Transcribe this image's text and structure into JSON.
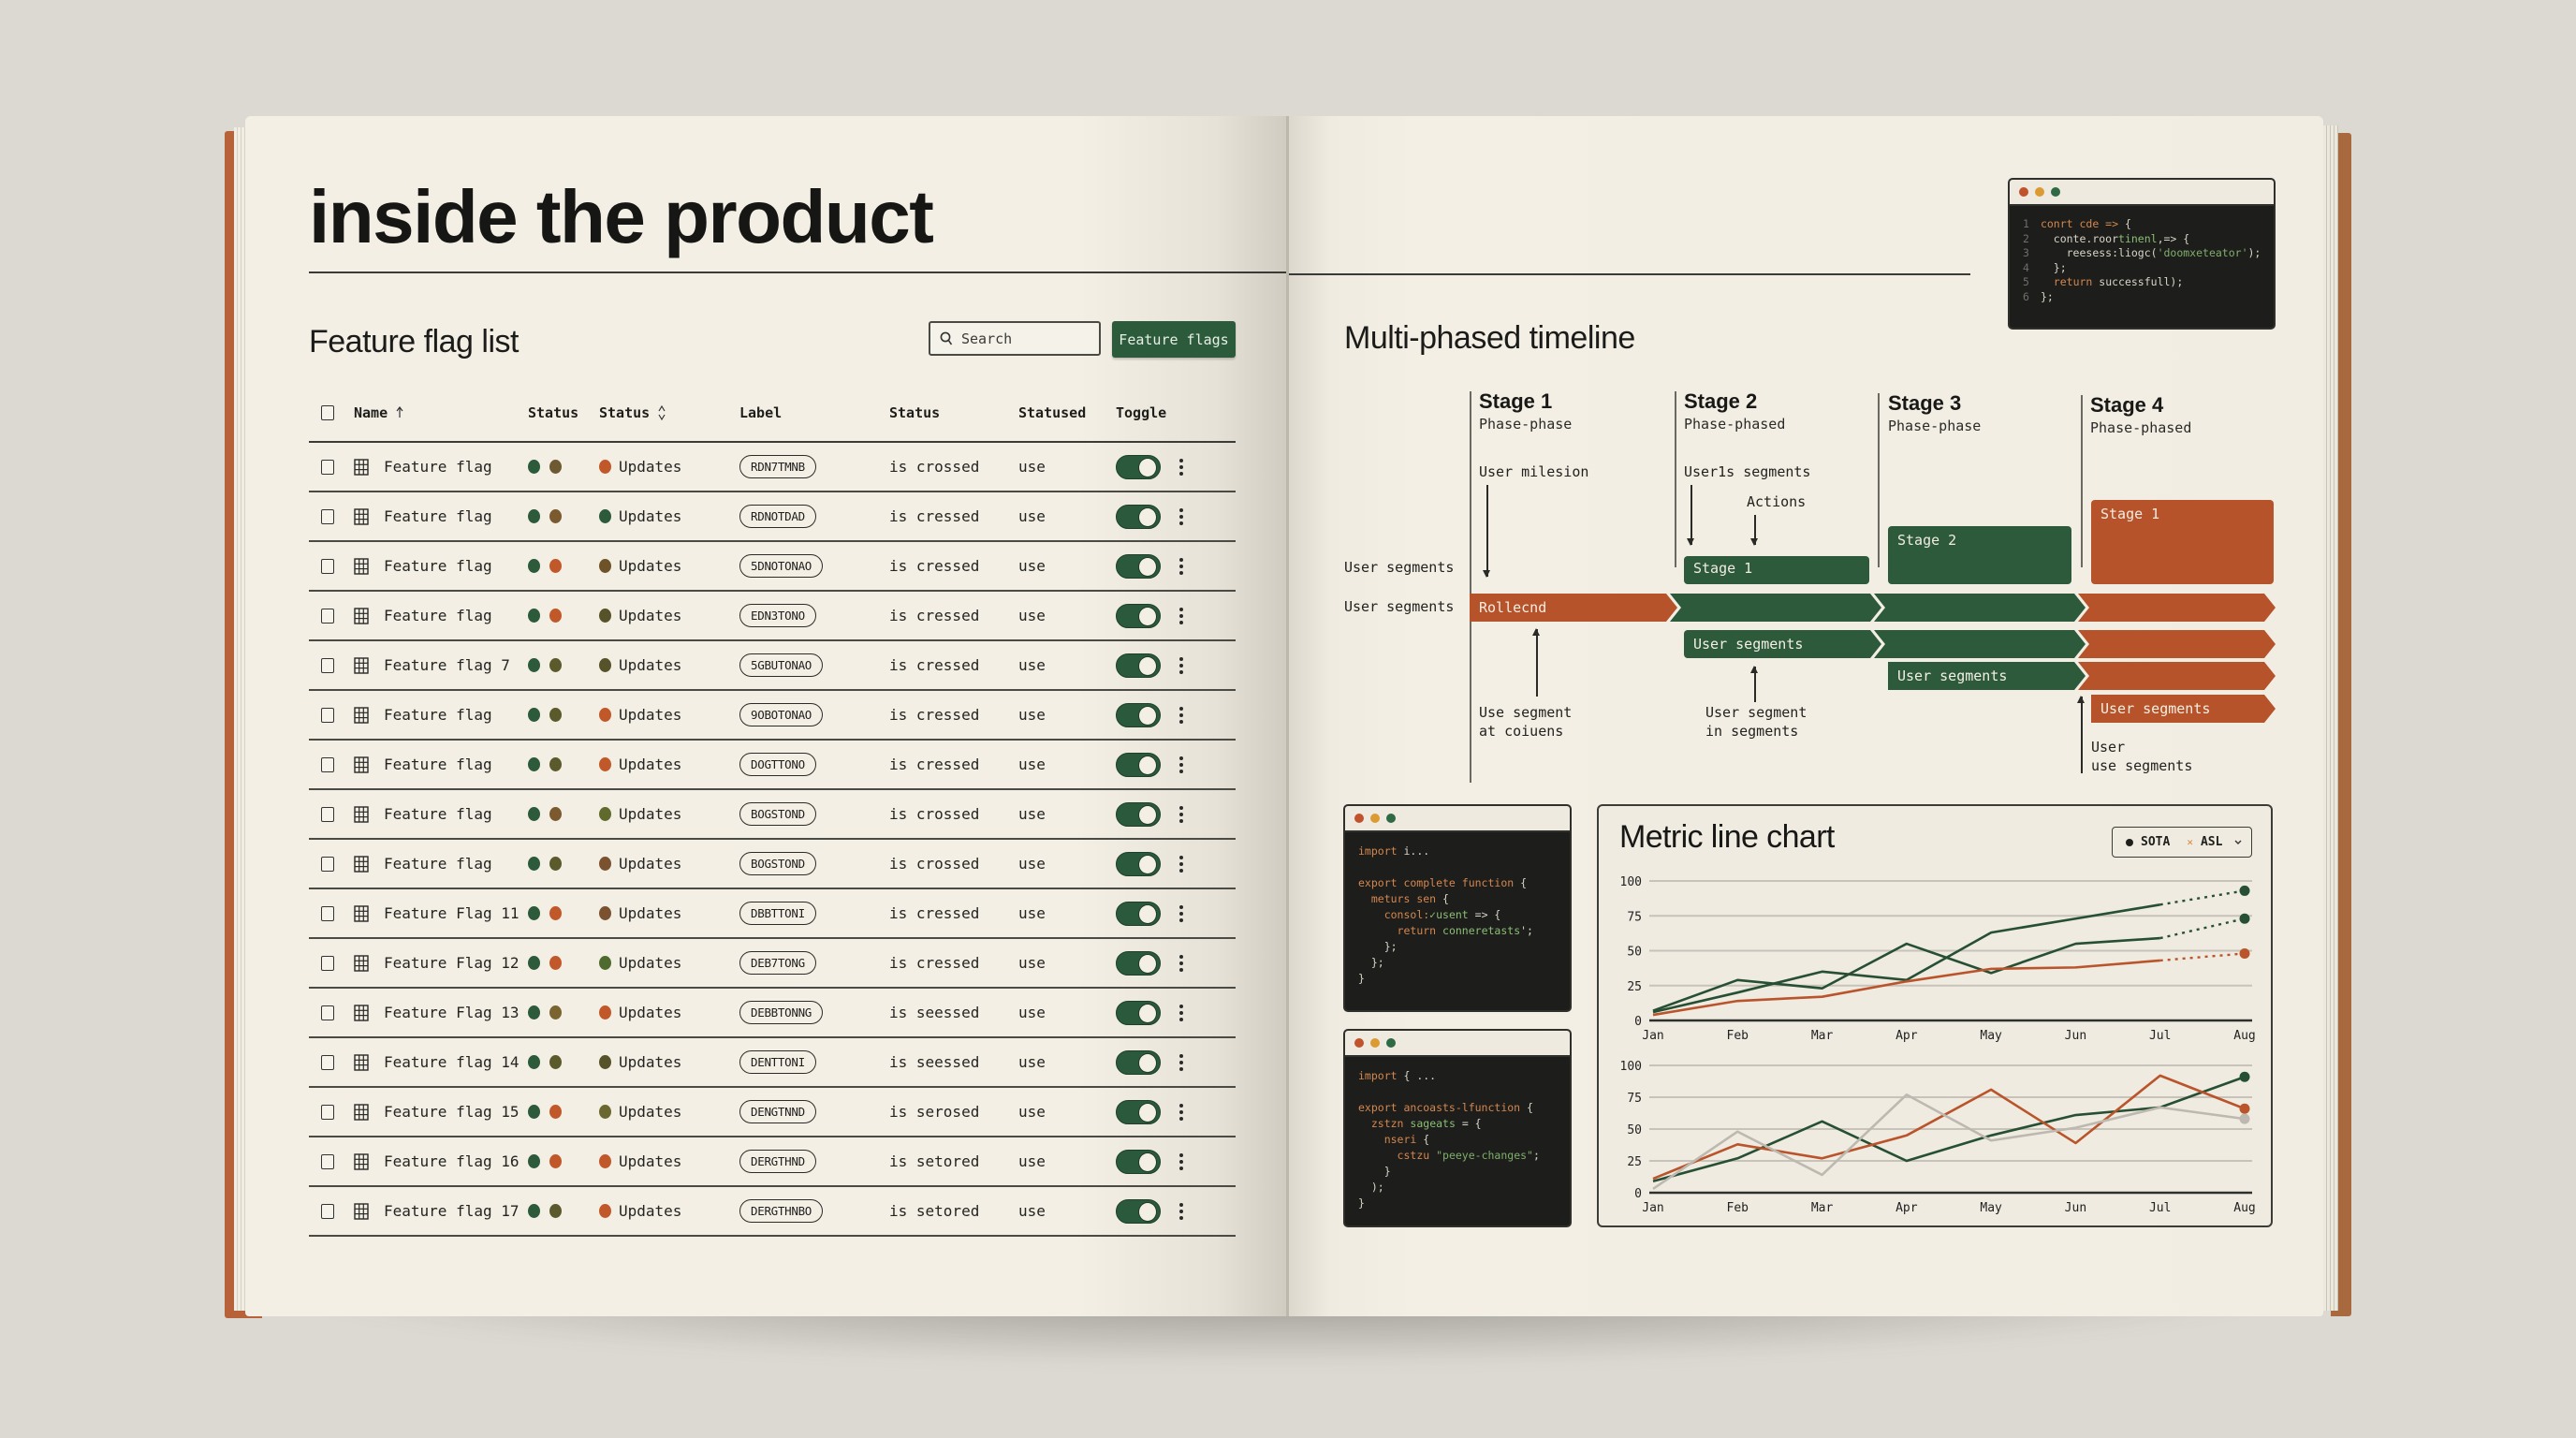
{
  "left_page": {
    "title": "inside the product",
    "section_title": "Feature flag list",
    "search": {
      "placeholder": "Search",
      "icon": "search-icon"
    },
    "primary_button": "Feature flags",
    "table": {
      "columns": [
        "Name",
        "Status",
        "Status",
        "Label",
        "Status",
        "Statused",
        "Toggle"
      ],
      "sort_indicators": {
        "Name": "sort-ascending-icon",
        "Status_2": "sort-both-icon"
      },
      "rows": [
        {
          "name": "Feature flag",
          "dots": [
            "#2c5a3b",
            "#6d5a32"
          ],
          "status_dot": "#c1582a",
          "status": "Updates",
          "label": "RDN7TMNB",
          "state": "is crossed",
          "statused": "use",
          "toggle": true
        },
        {
          "name": "Feature flag",
          "dots": [
            "#2c5a3b",
            "#7a5a2e"
          ],
          "status_dot": "#2c5a3b",
          "status": "Updates",
          "label": "RDNOTDAD",
          "state": "is cressed",
          "statused": "use",
          "toggle": true
        },
        {
          "name": "Feature flag",
          "dots": [
            "#2c5a3b",
            "#c1582a"
          ],
          "status_dot": "#6d5327",
          "status": "Updates",
          "label": "5DNOTONAO",
          "state": "is cressed",
          "statused": "use",
          "toggle": true
        },
        {
          "name": "Feature flag",
          "dots": [
            "#2c5a3b",
            "#c1582a"
          ],
          "status_dot": "#565229",
          "status": "Updates",
          "label": "EDN3TONO",
          "state": "is cressed",
          "statused": "use",
          "toggle": true
        },
        {
          "name": "Feature flag 7",
          "dots": [
            "#2c5a3b",
            "#5a5a2c"
          ],
          "status_dot": "#565229",
          "status": "Updates",
          "label": "5GBUTONAO",
          "state": "is cressed",
          "statused": "use",
          "toggle": true
        },
        {
          "name": "Feature flag",
          "dots": [
            "#2c5a3b",
            "#5a5a2c"
          ],
          "status_dot": "#c1582a",
          "status": "Updates",
          "label": "9OBOTONAO",
          "state": "is cressed",
          "statused": "use",
          "toggle": true
        },
        {
          "name": "Feature flag",
          "dots": [
            "#2c5a3b",
            "#5a5a2c"
          ],
          "status_dot": "#c1582a",
          "status": "Updates",
          "label": "DOGTTONO",
          "state": "is cressed",
          "statused": "use",
          "toggle": true
        },
        {
          "name": "Feature flag",
          "dots": [
            "#2c5a3b",
            "#7a5a2e"
          ],
          "status_dot": "#5f6a2c",
          "status": "Updates",
          "label": "BOGSTOND",
          "state": "is crossed",
          "statused": "use",
          "toggle": true
        },
        {
          "name": "Feature flag",
          "dots": [
            "#2c5a3b",
            "#5a5a2c"
          ],
          "status_dot": "#7a5230",
          "status": "Updates",
          "label": "BOGSTOND",
          "state": "is crossed",
          "statused": "use",
          "toggle": true
        },
        {
          "name": "Feature Flag 11",
          "dots": [
            "#2c5a3b",
            "#c1582a"
          ],
          "status_dot": "#7a5230",
          "status": "Updates",
          "label": "DBBTTONI",
          "state": "is cressed",
          "statused": "use",
          "toggle": true
        },
        {
          "name": "Feature Flag 12",
          "dots": [
            "#2c5a3b",
            "#c1582a"
          ],
          "status_dot": "#4f6a2e",
          "status": "Updates",
          "label": "DEB7TONG",
          "state": "is cressed",
          "statused": "use",
          "toggle": true
        },
        {
          "name": "Feature Flag 13",
          "dots": [
            "#2c5a3b",
            "#7a6430"
          ],
          "status_dot": "#c1582a",
          "status": "Updates",
          "label": "DEBBTONNG",
          "state": "is seessed",
          "statused": "use",
          "toggle": true
        },
        {
          "name": "Feature flag 14",
          "dots": [
            "#2c5a3b",
            "#5a5a2c"
          ],
          "status_dot": "#565229",
          "status": "Updates",
          "label": "DENTTONI",
          "state": "is seessed",
          "statused": "use",
          "toggle": true
        },
        {
          "name": "Feature flag 15",
          "dots": [
            "#2c5a3b",
            "#c1582a"
          ],
          "status_dot": "#6a6830",
          "status": "Updates",
          "label": "DENGTNND",
          "state": "is serosed",
          "statused": "use",
          "toggle": true
        },
        {
          "name": "Feature flag 16",
          "dots": [
            "#2c5a3b",
            "#c1582a"
          ],
          "status_dot": "#c1582a",
          "status": "Updates",
          "label": "DERGTHND",
          "state": "is setored",
          "statused": "use",
          "toggle": true
        },
        {
          "name": "Feature flag 17",
          "dots": [
            "#2c5a3b",
            "#5a5a2c"
          ],
          "status_dot": "#c1582a",
          "status": "Updates",
          "label": "DERGTHNBO",
          "state": "is setored",
          "statused": "use",
          "toggle": true
        }
      ]
    }
  },
  "right_page": {
    "code_top": {
      "lines": [
        {
          "n": "1",
          "html": "<span class='kw'>conrt cde =&gt;</span> {"
        },
        {
          "n": "2",
          "html": "  conte.roor<span class='grn'>tinenl</span>,=&gt; {"
        },
        {
          "n": "3",
          "html": "    reesess:liogc(<span class='str'>'doomxeteator'</span>);"
        },
        {
          "n": "4",
          "html": "  };"
        },
        {
          "n": "5",
          "html": "  <span class='kw'>return</span> successfull);"
        },
        {
          "n": "6",
          "html": "};"
        }
      ]
    },
    "timeline": {
      "title": "Multi-phased timeline",
      "stages": [
        {
          "title": "Stage 1",
          "subtitle": "Phase-phase"
        },
        {
          "title": "Stage 2",
          "subtitle": "Phase-phased"
        },
        {
          "title": "Stage 3",
          "subtitle": "Phase-phase"
        },
        {
          "title": "Stage 4",
          "subtitle": "Phase-phased"
        }
      ],
      "row_labels": [
        "User segments",
        "User segments"
      ],
      "annotations": {
        "user_milestion": "User milesion",
        "users_segments": "User1s segments",
        "actions": "Actions",
        "use_segment_at": "Use segment\nat coiuens",
        "user_segment_in": "User segment\nin segments",
        "user_use_segments": "User\nuse segments"
      },
      "blocks": {
        "stage2_block": "Stage 1",
        "stage3_block": "Stage 2",
        "stage4_block": "Stage 1"
      },
      "bars": {
        "main_first": "Rollecnd",
        "row2": "User segments",
        "row3": "User segments",
        "row4": "User segments"
      }
    },
    "code_mid": {
      "lines": [
        "<span class='kw'>import</span> i...",
        "",
        "<span class='kw'>export complete function</span> {",
        "  <span class='kw'>meturs sen</span> {",
        "    <span class='kw'>consol:</span><span class='grn'>✓usent</span> =&gt; {",
        "      <span class='kw'>return</span> <span class='grn'>conneretasts</span>';",
        "    };",
        "  };",
        "}"
      ]
    },
    "code_bot": {
      "lines": [
        "<span class='kw'>import</span> { ...",
        "",
        "<span class='kw'>export ancoasts-lfunction</span> {",
        "  <span class='kw'>zstzn</span> <span class='grn'>sageats</span> = {",
        "    <span class='kw'>nseri</span> {",
        "      <span class='kw'>cstzu</span> <span class='str'>\"peeye-changes\"</span>;",
        "    }",
        "  );",
        "}"
      ]
    },
    "chart_card": {
      "title": "Metric line chart",
      "legend": [
        {
          "label": "SOTA",
          "marker": "dot"
        },
        {
          "label": "ASL",
          "marker": "x"
        }
      ],
      "legend_dropdown_icon": "chevron-down-icon"
    }
  },
  "chart_data": [
    {
      "type": "line",
      "title": "Metric line chart",
      "categories": [
        "Jan",
        "Feb",
        "Mar",
        "Apr",
        "May",
        "Jun",
        "Jul",
        "Aug"
      ],
      "yticks": [
        0,
        25,
        50,
        75,
        100
      ],
      "ylim": [
        0,
        100
      ],
      "grid": true,
      "legend": [
        "SOTA",
        "ASL"
      ],
      "series": [
        {
          "name": "SOTA (upper)",
          "color": "#264f33",
          "values": [
            6,
            20,
            35,
            29,
            63,
            73,
            83,
            93
          ],
          "projected_from_index": 6
        },
        {
          "name": "SOTA (zigzag)",
          "color": "#264f33",
          "values": [
            7,
            29,
            23,
            55,
            34,
            55,
            59,
            73
          ],
          "projected_from_index": 6
        },
        {
          "name": "ASL",
          "color": "#b9542b",
          "values": [
            4,
            14,
            17,
            28,
            37,
            38,
            43,
            48
          ],
          "projected_from_index": 6
        }
      ]
    },
    {
      "type": "line",
      "title": "",
      "categories": [
        "Jan",
        "Feb",
        "Mar",
        "Apr",
        "May",
        "Jun",
        "Jul",
        "Aug"
      ],
      "yticks": [
        0,
        25,
        50,
        75,
        100
      ],
      "ylim": [
        0,
        100
      ],
      "grid": true,
      "series": [
        {
          "name": "Green",
          "color": "#264f33",
          "values": [
            9,
            27,
            56,
            25,
            45,
            61,
            67,
            91
          ]
        },
        {
          "name": "Orange",
          "color": "#b9542b",
          "values": [
            11,
            38,
            27,
            45,
            81,
            39,
            92,
            66
          ]
        },
        {
          "name": "Gray",
          "color": "#bdb9b0",
          "values": [
            3,
            48,
            14,
            77,
            41,
            51,
            67,
            58
          ]
        }
      ]
    }
  ]
}
